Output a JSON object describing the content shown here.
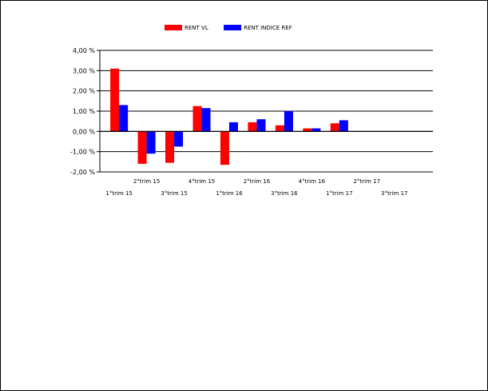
{
  "chart_data": {
    "type": "bar",
    "title": "",
    "xlabel": "",
    "ylabel": "",
    "categories": [
      "1°trim 15",
      "2°trim 15",
      "3°trim 15",
      "4°trim 15",
      "1°trim 16",
      "2°trim 16",
      "3°trim 16",
      "4°trim 16",
      "1°trim 17",
      "2°trim 17",
      "3°trim 17"
    ],
    "series": [
      {
        "name": "RENT VL",
        "color": "#ff0000",
        "values": [
          3.1,
          -1.6,
          -1.55,
          1.25,
          -1.65,
          0.45,
          0.3,
          0.15,
          0.4,
          null,
          null
        ]
      },
      {
        "name": "RENT INDICE REF",
        "color": "#0000ff",
        "values": [
          1.3,
          -1.1,
          -0.75,
          1.15,
          0.45,
          0.6,
          1.0,
          0.15,
          0.55,
          null,
          null
        ]
      }
    ],
    "ylim": [
      -2,
      4
    ],
    "yticks": [
      4,
      3,
      2,
      1,
      0,
      -1,
      -2
    ],
    "ytick_labels": [
      "4,00 %",
      "3,00 %",
      "2,00 %",
      "1,00 %",
      "0,00 %",
      "-1,00 %",
      "-2,00 %"
    ],
    "grid": true,
    "legend_position": "top-center"
  }
}
